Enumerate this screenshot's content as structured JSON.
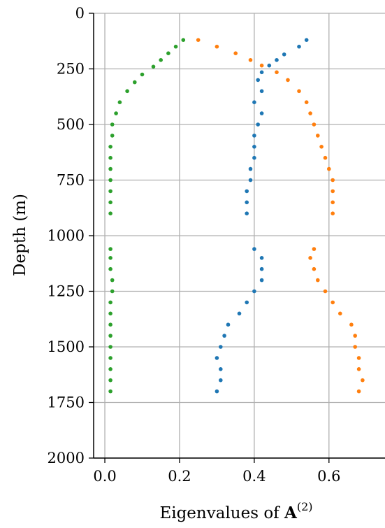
{
  "chart_data": {
    "type": "scatter",
    "xlabel": "Eigenvalues of",
    "xlabel_symbol": "A",
    "xlabel_superscript": "(2)",
    "ylabel": "Depth (m)",
    "xlim": [
      -0.03,
      0.75
    ],
    "ylim": [
      2000,
      0
    ],
    "y_inverted": true,
    "grid": true,
    "x_ticks": [
      0.0,
      0.2,
      0.4,
      0.6
    ],
    "x_tick_labels": [
      "0.0",
      "0.2",
      "0.4",
      "0.6"
    ],
    "y_ticks": [
      0,
      250,
      500,
      750,
      1000,
      1250,
      1500,
      1750,
      2000
    ],
    "y_tick_labels": [
      "0",
      "250",
      "500",
      "750",
      "1000",
      "1250",
      "1500",
      "1750",
      "2000"
    ],
    "colors": {
      "blue": "#1f77b4",
      "orange": "#ff7f0e",
      "green": "#2ca02c",
      "grid": "#b0b0b0"
    },
    "series": [
      {
        "color": "#1f77b4",
        "points": [
          [
            0.54,
            120
          ],
          [
            0.52,
            150
          ],
          [
            0.48,
            185
          ],
          [
            0.46,
            210
          ],
          [
            0.44,
            235
          ],
          [
            0.42,
            265
          ],
          [
            0.41,
            300
          ],
          [
            0.42,
            350
          ],
          [
            0.4,
            400
          ],
          [
            0.42,
            450
          ],
          [
            0.41,
            500
          ],
          [
            0.4,
            550
          ],
          [
            0.4,
            600
          ],
          [
            0.4,
            650
          ],
          [
            0.39,
            700
          ],
          [
            0.39,
            750
          ],
          [
            0.38,
            800
          ],
          [
            0.38,
            850
          ],
          [
            0.38,
            900
          ],
          [
            0.4,
            1060
          ],
          [
            0.42,
            1100
          ],
          [
            0.42,
            1150
          ],
          [
            0.42,
            1200
          ],
          [
            0.4,
            1250
          ],
          [
            0.38,
            1300
          ],
          [
            0.36,
            1350
          ],
          [
            0.33,
            1400
          ],
          [
            0.32,
            1450
          ],
          [
            0.31,
            1500
          ],
          [
            0.3,
            1550
          ],
          [
            0.31,
            1600
          ],
          [
            0.31,
            1650
          ],
          [
            0.3,
            1700
          ]
        ]
      },
      {
        "color": "#ff7f0e",
        "points": [
          [
            0.25,
            120
          ],
          [
            0.3,
            150
          ],
          [
            0.35,
            180
          ],
          [
            0.39,
            210
          ],
          [
            0.42,
            235
          ],
          [
            0.46,
            265
          ],
          [
            0.49,
            300
          ],
          [
            0.52,
            350
          ],
          [
            0.54,
            400
          ],
          [
            0.55,
            450
          ],
          [
            0.56,
            500
          ],
          [
            0.57,
            550
          ],
          [
            0.58,
            600
          ],
          [
            0.59,
            650
          ],
          [
            0.6,
            700
          ],
          [
            0.61,
            750
          ],
          [
            0.61,
            800
          ],
          [
            0.61,
            850
          ],
          [
            0.61,
            900
          ],
          [
            0.56,
            1060
          ],
          [
            0.55,
            1100
          ],
          [
            0.56,
            1150
          ],
          [
            0.57,
            1200
          ],
          [
            0.59,
            1250
          ],
          [
            0.61,
            1300
          ],
          [
            0.63,
            1350
          ],
          [
            0.66,
            1400
          ],
          [
            0.67,
            1450
          ],
          [
            0.67,
            1500
          ],
          [
            0.68,
            1550
          ],
          [
            0.68,
            1600
          ],
          [
            0.69,
            1650
          ],
          [
            0.68,
            1700
          ]
        ]
      },
      {
        "color": "#2ca02c",
        "points": [
          [
            0.21,
            120
          ],
          [
            0.19,
            150
          ],
          [
            0.17,
            180
          ],
          [
            0.15,
            210
          ],
          [
            0.13,
            240
          ],
          [
            0.1,
            275
          ],
          [
            0.08,
            310
          ],
          [
            0.06,
            350
          ],
          [
            0.04,
            400
          ],
          [
            0.03,
            450
          ],
          [
            0.02,
            500
          ],
          [
            0.02,
            550
          ],
          [
            0.015,
            600
          ],
          [
            0.015,
            650
          ],
          [
            0.015,
            700
          ],
          [
            0.015,
            750
          ],
          [
            0.015,
            800
          ],
          [
            0.015,
            850
          ],
          [
            0.015,
            900
          ],
          [
            0.015,
            1060
          ],
          [
            0.015,
            1100
          ],
          [
            0.015,
            1150
          ],
          [
            0.02,
            1200
          ],
          [
            0.02,
            1250
          ],
          [
            0.015,
            1300
          ],
          [
            0.015,
            1350
          ],
          [
            0.015,
            1400
          ],
          [
            0.015,
            1450
          ],
          [
            0.015,
            1500
          ],
          [
            0.015,
            1550
          ],
          [
            0.015,
            1600
          ],
          [
            0.015,
            1650
          ],
          [
            0.015,
            1700
          ]
        ]
      }
    ]
  }
}
